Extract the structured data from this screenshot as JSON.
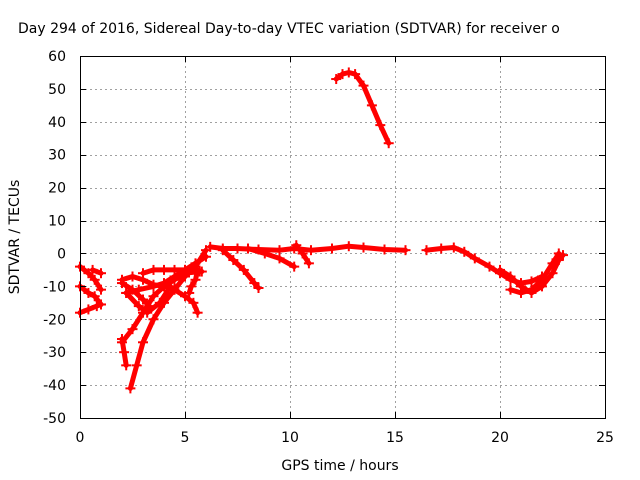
{
  "chart_data": {
    "type": "scatter",
    "title": "Day 294 of 2016, Sidereal Day-to-day VTEC variation (SDTVAR) for receiver o",
    "xlabel": "GPS time / hours",
    "ylabel": "SDTVAR / TECUs",
    "xlim": [
      0,
      25
    ],
    "ylim": [
      -50,
      60
    ],
    "xticks": [
      0,
      5,
      10,
      15,
      20,
      25
    ],
    "yticks": [
      -50,
      -40,
      -30,
      -20,
      -10,
      0,
      10,
      20,
      30,
      40,
      50,
      60
    ],
    "grid": true,
    "marker": "plus",
    "series": [
      {
        "color": "#ff0000",
        "segments": [
          [
            [
              12.2,
              53
            ],
            [
              12.5,
              54.5
            ],
            [
              12.8,
              55
            ],
            [
              13.1,
              54.5
            ],
            [
              13.5,
              51
            ],
            [
              13.9,
              45
            ],
            [
              14.3,
              39
            ],
            [
              14.7,
              33.5
            ]
          ],
          [
            [
              6.2,
              2
            ],
            [
              6.8,
              1.5
            ],
            [
              7.5,
              1.5
            ],
            [
              8.5,
              1.2
            ],
            [
              9.5,
              1
            ],
            [
              10.2,
              1.5
            ],
            [
              11,
              1
            ],
            [
              12,
              1.5
            ],
            [
              12.8,
              2.2
            ],
            [
              13.5,
              1.8
            ],
            [
              14.5,
              1.2
            ],
            [
              15.5,
              1
            ]
          ],
          [
            [
              16.5,
              1
            ],
            [
              17.2,
              1.5
            ],
            [
              17.8,
              1.8
            ],
            [
              18.3,
              0.5
            ],
            [
              18.8,
              -1.5
            ],
            [
              19.5,
              -4
            ],
            [
              20,
              -6
            ],
            [
              20.5,
              -8
            ],
            [
              21,
              -9
            ],
            [
              21.5,
              -8.5
            ],
            [
              22,
              -7
            ]
          ],
          [
            [
              20,
              -5
            ],
            [
              20.5,
              -7
            ],
            [
              21,
              -10
            ],
            [
              21.5,
              -12
            ],
            [
              22,
              -10
            ],
            [
              22.5,
              -6
            ],
            [
              22.8,
              -2
            ],
            [
              23,
              -0.5
            ]
          ],
          [
            [
              20.5,
              -11
            ],
            [
              21,
              -12
            ],
            [
              21.5,
              -11
            ],
            [
              22,
              -8
            ],
            [
              22.5,
              -3
            ],
            [
              22.8,
              0
            ]
          ],
          [
            [
              6.8,
              1
            ],
            [
              7.3,
              -2
            ],
            [
              7.8,
              -5
            ],
            [
              8.3,
              -9
            ],
            [
              8.5,
              -10.5
            ]
          ],
          [
            [
              8,
              1.5
            ],
            [
              8.8,
              0
            ],
            [
              9.5,
              -1.5
            ],
            [
              10.2,
              -4
            ]
          ],
          [
            [
              10.3,
              2.5
            ],
            [
              10.6,
              0
            ],
            [
              10.9,
              -3
            ]
          ],
          [
            [
              0,
              -4
            ],
            [
              0.4,
              -6
            ],
            [
              0.7,
              -8
            ],
            [
              1,
              -11
            ]
          ],
          [
            [
              0,
              -10
            ],
            [
              0.4,
              -12
            ],
            [
              0.7,
              -13
            ],
            [
              1,
              -15.5
            ]
          ],
          [
            [
              0,
              -18
            ],
            [
              0.4,
              -17
            ],
            [
              0.8,
              -16
            ],
            [
              1,
              -15.5
            ]
          ],
          [
            [
              0.6,
              -5
            ],
            [
              1,
              -6
            ]
          ],
          [
            [
              2,
              -26
            ],
            [
              2.1,
              -30
            ],
            [
              2.2,
              -34
            ]
          ],
          [
            [
              2.4,
              -41
            ],
            [
              2.7,
              -34
            ],
            [
              3,
              -27
            ],
            [
              3.5,
              -20
            ],
            [
              4,
              -15
            ],
            [
              4.5,
              -11
            ],
            [
              5,
              -7
            ],
            [
              5.5,
              -4
            ],
            [
              6,
              1
            ]
          ],
          [
            [
              2,
              -9
            ],
            [
              2.5,
              -11
            ],
            [
              3,
              -14
            ],
            [
              3.3,
              -16
            ]
          ],
          [
            [
              2,
              -27
            ],
            [
              2.5,
              -23
            ],
            [
              3,
              -18
            ],
            [
              3.5,
              -13
            ],
            [
              4,
              -10
            ],
            [
              4.5,
              -8
            ],
            [
              5,
              -6
            ],
            [
              5.7,
              -5.5
            ]
          ],
          [
            [
              2.2,
              -12
            ],
            [
              2.8,
              -16
            ],
            [
              3.2,
              -18
            ],
            [
              3.8,
              -15
            ],
            [
              4.3,
              -10
            ]
          ],
          [
            [
              2,
              -8
            ],
            [
              2.5,
              -7
            ],
            [
              3,
              -8
            ],
            [
              3.5,
              -9.5
            ],
            [
              4,
              -10
            ],
            [
              4.5,
              -11
            ],
            [
              5,
              -13
            ],
            [
              5.4,
              -15
            ],
            [
              5.6,
              -18
            ]
          ],
          [
            [
              2.2,
              -12
            ],
            [
              2.8,
              -11
            ],
            [
              3.5,
              -10
            ],
            [
              4,
              -9
            ],
            [
              4.5,
              -7
            ],
            [
              5,
              -5
            ],
            [
              5.5,
              -3
            ],
            [
              6,
              -1
            ]
          ],
          [
            [
              3,
              -6
            ],
            [
              3.5,
              -5
            ],
            [
              4,
              -5
            ],
            [
              4.5,
              -5
            ],
            [
              5,
              -5
            ],
            [
              5.5,
              -5
            ],
            [
              5.8,
              -5.5
            ]
          ],
          [
            [
              5.6,
              -5
            ],
            [
              5.5,
              -8
            ],
            [
              5.3,
              -10
            ],
            [
              5.2,
              -12
            ]
          ]
        ]
      }
    ]
  }
}
